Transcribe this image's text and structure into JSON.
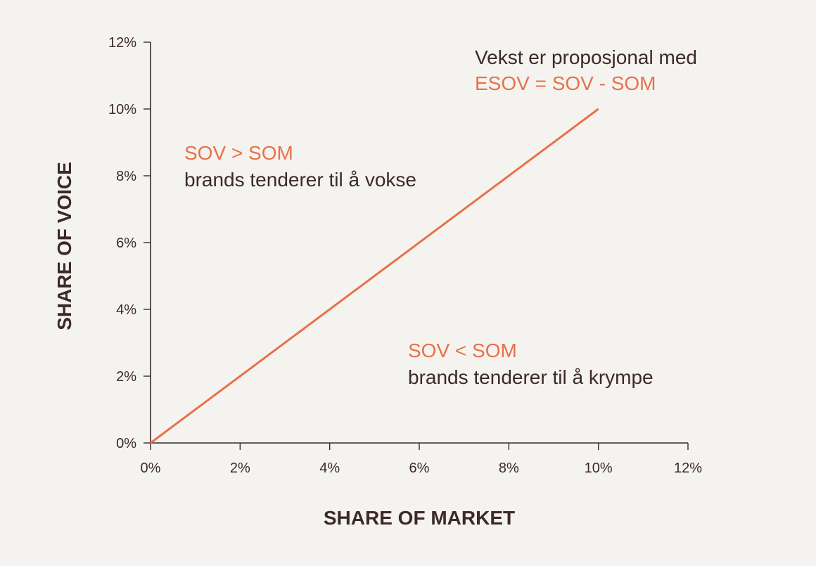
{
  "chart_data": {
    "type": "line",
    "title": "",
    "xlabel": "SHARE OF MARKET",
    "ylabel": "SHARE OF VOICE",
    "xlim": [
      0,
      12
    ],
    "ylim": [
      0,
      12
    ],
    "x_ticks": [
      "0%",
      "2%",
      "4%",
      "6%",
      "8%",
      "10%",
      "12%"
    ],
    "y_ticks": [
      "0%",
      "2%",
      "4%",
      "6%",
      "8%",
      "10%",
      "12%"
    ],
    "grid": false,
    "series": [
      {
        "x": [
          0,
          10
        ],
        "y": [
          0,
          10
        ],
        "color": "#e8714a"
      }
    ],
    "annotations": [
      {
        "id": "formula",
        "lines": [
          {
            "text": "Vekst er proposjonal med",
            "color": "#3b2a27"
          },
          {
            "text": "ESOV = SOV - SOM",
            "color": "#e8714a"
          }
        ]
      },
      {
        "id": "above",
        "lines": [
          {
            "text": "SOV > SOM",
            "color": "#e8714a"
          },
          {
            "text": "brands tenderer til å vokse",
            "color": "#3b2a27"
          }
        ]
      },
      {
        "id": "below",
        "lines": [
          {
            "text": "SOV < SOM",
            "color": "#e8714a"
          },
          {
            "text": "brands tenderer til å krympe",
            "color": "#3b2a27"
          }
        ]
      }
    ]
  }
}
